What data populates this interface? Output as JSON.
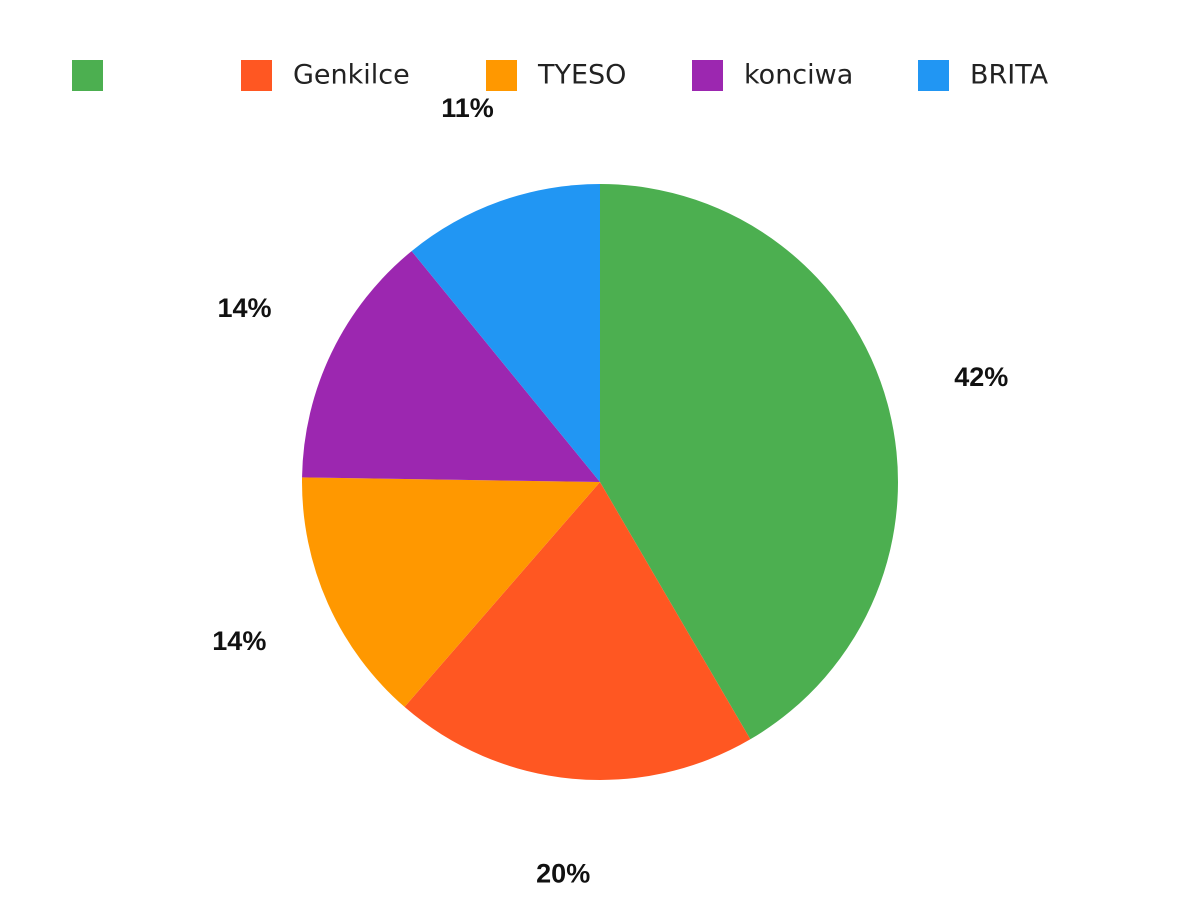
{
  "chart_data": {
    "type": "pie",
    "categories": [
      null,
      "Genkilce",
      "TYESO",
      "konciwa",
      "BRITA"
    ],
    "values": [
      42,
      20,
      14,
      14,
      11
    ],
    "value_labels": [
      "42%",
      "20%",
      "14%",
      "14%",
      "11%"
    ],
    "colors": [
      "#4caf50",
      "#ff5722",
      "#ff9800",
      "#9c27b0",
      "#2196f3"
    ],
    "legend": "top"
  }
}
